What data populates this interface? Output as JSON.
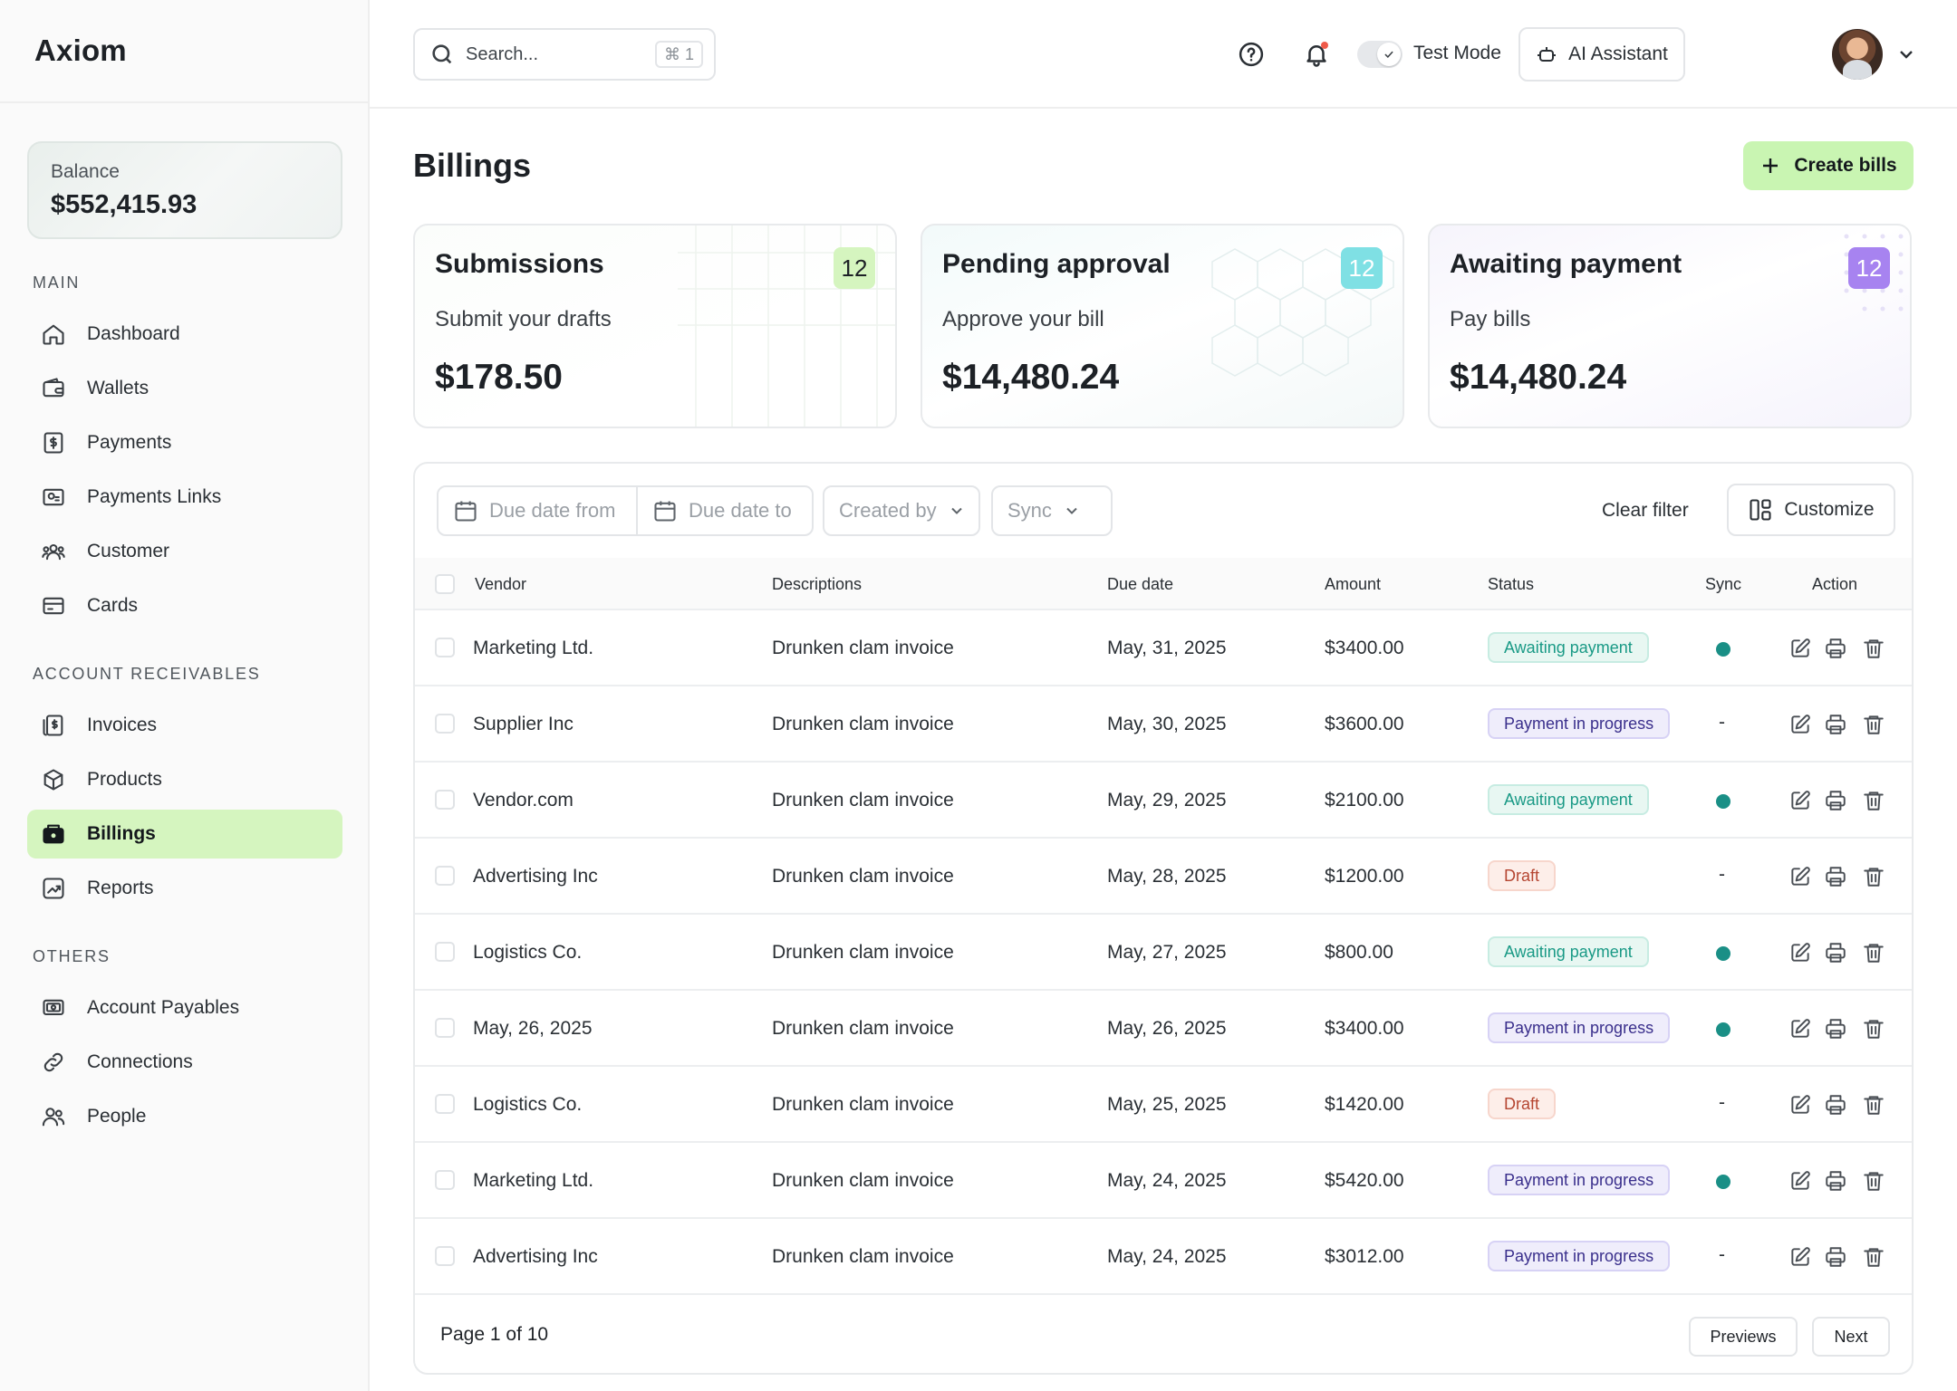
{
  "app": {
    "name": "Axiom"
  },
  "balance": {
    "label": "Balance",
    "value": "$552,415.93"
  },
  "sidebar": {
    "sections": [
      {
        "title": "MAIN",
        "items": [
          {
            "label": "Dashboard",
            "icon": "home-icon"
          },
          {
            "label": "Wallets",
            "icon": "wallet-icon"
          },
          {
            "label": "Payments",
            "icon": "dollar-doc-icon"
          },
          {
            "label": "Payments Links",
            "icon": "payment-link-icon"
          },
          {
            "label": "Customer",
            "icon": "users-icon"
          },
          {
            "label": "Cards",
            "icon": "card-icon"
          }
        ]
      },
      {
        "title": "ACCOUNT RECEIVABLES",
        "items": [
          {
            "label": "Invoices",
            "icon": "invoice-icon"
          },
          {
            "label": "Products",
            "icon": "box-icon"
          },
          {
            "label": "Billings",
            "icon": "billing-icon",
            "active": true
          },
          {
            "label": "Reports",
            "icon": "chart-icon"
          }
        ]
      },
      {
        "title": "OTHERS",
        "items": [
          {
            "label": "Account Payables",
            "icon": "money-icon"
          },
          {
            "label": "Connections",
            "icon": "link-icon"
          },
          {
            "label": "People",
            "icon": "people-icon"
          }
        ]
      }
    ]
  },
  "topbar": {
    "search_placeholder": "Search...",
    "search_shortcut": "⌘ 1",
    "test_mode_label": "Test Mode",
    "test_mode_on": true,
    "ai_label": "AI Assistant"
  },
  "page": {
    "title": "Billings",
    "create_label": "Create bills"
  },
  "cards": [
    {
      "title": "Submissions",
      "subtitle": "Submit your drafts",
      "amount": "$178.50",
      "count": "12"
    },
    {
      "title": "Pending approval",
      "subtitle": "Approve your bill",
      "amount": "$14,480.24",
      "count": "12"
    },
    {
      "title": "Awaiting payment",
      "subtitle": "Pay bills",
      "amount": "$14,480.24",
      "count": "12"
    }
  ],
  "filters": {
    "due_from": "Due date from",
    "due_to": "Due date to",
    "created_by": "Created by",
    "sync": "Sync",
    "clear": "Clear filter",
    "customize": "Customize"
  },
  "table": {
    "headers": {
      "vendor": "Vendor",
      "desc": "Descriptions",
      "due": "Due date",
      "amount": "Amount",
      "status": "Status",
      "sync": "Sync",
      "action": "Action"
    },
    "rows": [
      {
        "vendor": "Marketing Ltd.",
        "desc": "Drunken clam invoice",
        "due": "May, 31, 2025",
        "amount": "$3400.00",
        "status": "Awaiting payment",
        "status_type": "awaiting",
        "synced": true
      },
      {
        "vendor": "Supplier Inc",
        "desc": "Drunken clam invoice",
        "due": "May, 30, 2025",
        "amount": "$3600.00",
        "status": "Payment in progress",
        "status_type": "progress",
        "synced": false
      },
      {
        "vendor": "Vendor.com",
        "desc": "Drunken clam invoice",
        "due": "May, 29, 2025",
        "amount": "$2100.00",
        "status": "Awaiting payment",
        "status_type": "awaiting",
        "synced": true
      },
      {
        "vendor": "Advertising Inc",
        "desc": "Drunken clam invoice",
        "due": "May, 28, 2025",
        "amount": "$1200.00",
        "status": "Draft",
        "status_type": "draft",
        "synced": false
      },
      {
        "vendor": "Logistics Co.",
        "desc": "Drunken clam invoice",
        "due": "May, 27, 2025",
        "amount": "$800.00",
        "status": "Awaiting payment",
        "status_type": "awaiting",
        "synced": true
      },
      {
        "vendor": "May, 26, 2025",
        "desc": "Drunken clam invoice",
        "due": "May, 26, 2025",
        "amount": "$3400.00",
        "status": "Payment in progress",
        "status_type": "progress",
        "synced": true
      },
      {
        "vendor": "Logistics Co.",
        "desc": "Drunken clam invoice",
        "due": "May, 25, 2025",
        "amount": "$1420.00",
        "status": "Draft",
        "status_type": "draft",
        "synced": false
      },
      {
        "vendor": "Marketing Ltd.",
        "desc": "Drunken clam invoice",
        "due": "May, 24, 2025",
        "amount": "$5420.00",
        "status": "Payment in progress",
        "status_type": "progress",
        "synced": true
      },
      {
        "vendor": "Advertising Inc",
        "desc": "Drunken clam invoice",
        "due": "May, 24, 2025",
        "amount": "$3012.00",
        "status": "Payment in progress",
        "status_type": "progress",
        "synced": false
      }
    ],
    "no_sync_text": "-"
  },
  "pagination": {
    "label": "Page 1 of 10",
    "prev": "Previews",
    "next": "Next"
  },
  "colors": {
    "accent": "#d5f5bf",
    "sync_dot": "#1a8f86",
    "badge_teal": "#7fe0e4",
    "badge_purple": "#a783f0"
  }
}
